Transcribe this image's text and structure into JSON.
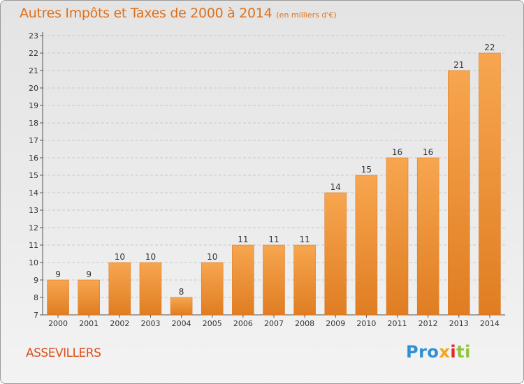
{
  "chart_data": {
    "type": "bar",
    "title": "Autres Impôts et Taxes de 2000 à 2014",
    "subtitle": "(en milliers d'€)",
    "categories": [
      "2000",
      "2001",
      "2002",
      "2003",
      "2004",
      "2005",
      "2006",
      "2007",
      "2008",
      "2009",
      "2010",
      "2011",
      "2012",
      "2013",
      "2014"
    ],
    "values": [
      9,
      9,
      10,
      10,
      8,
      10,
      11,
      11,
      11,
      14,
      15,
      16,
      16,
      21,
      22
    ],
    "ylim": [
      7,
      23
    ],
    "yticks": [
      7,
      8,
      9,
      10,
      11,
      12,
      13,
      14,
      15,
      16,
      17,
      18,
      19,
      20,
      21,
      22,
      23
    ],
    "grid": true,
    "xlabel": "",
    "ylabel": "",
    "colors": {
      "bar_light": "#f7a64f",
      "bar_dark": "#e07d22",
      "title": "#e0701a",
      "commune": "#d9501e"
    }
  },
  "commune": "ASSEVILLERS",
  "brand": {
    "letters": [
      "Pro",
      "x",
      "i",
      "ti"
    ]
  }
}
